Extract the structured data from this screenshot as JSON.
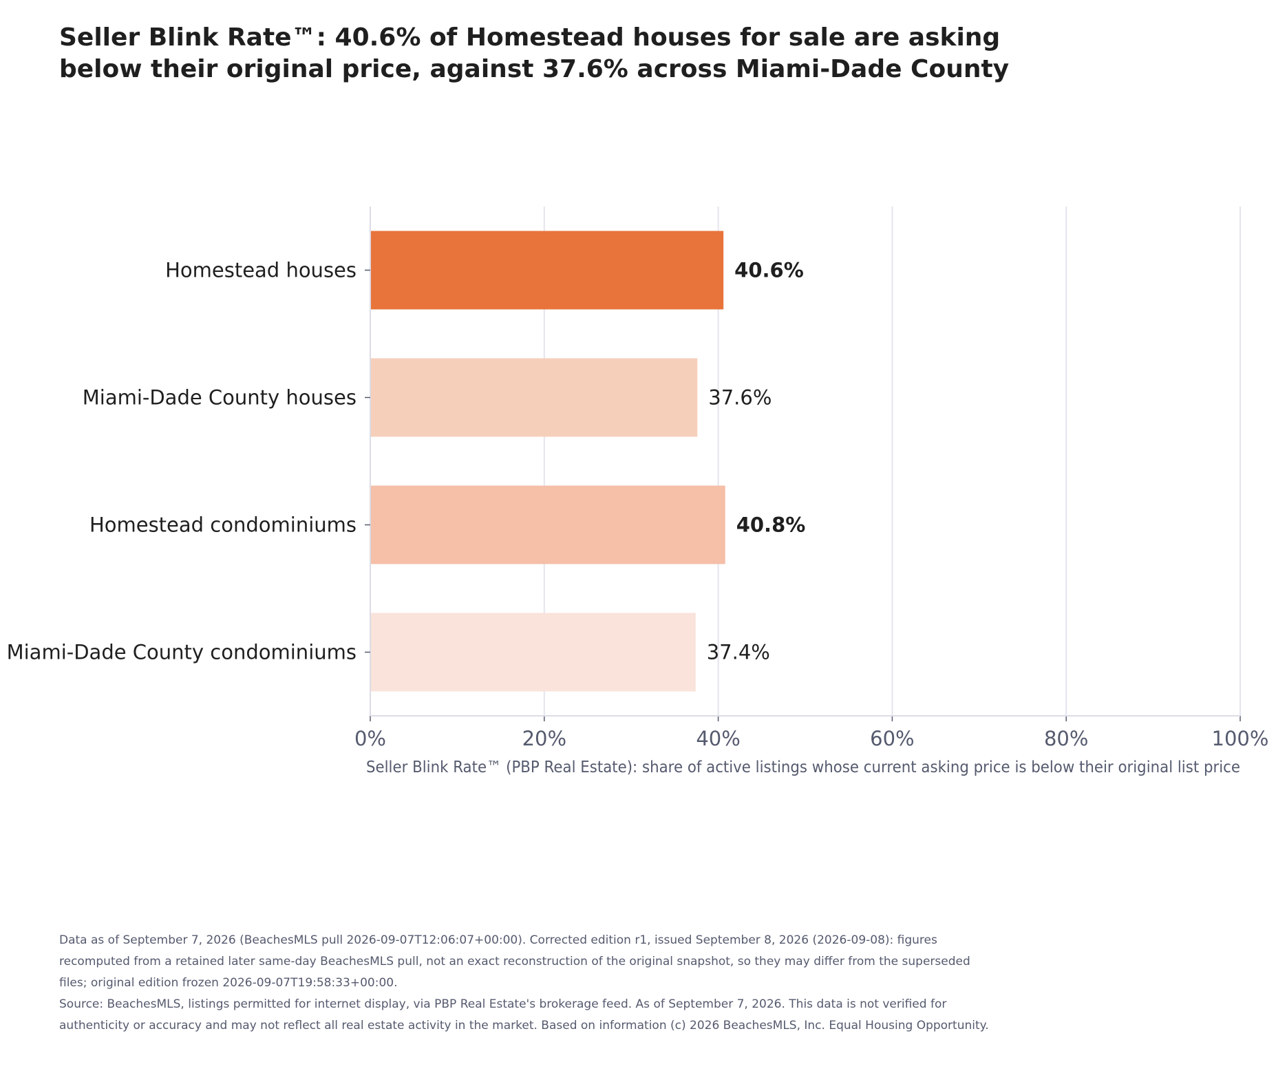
{
  "title": {
    "line1": "Seller Blink Rate™: 40.6% of Homestead houses for sale are asking",
    "line2": "below their original price, against 37.6% across Miami-Dade County"
  },
  "chart_data": {
    "type": "bar",
    "orientation": "horizontal",
    "categories": [
      "Homestead houses",
      "Miami-Dade County houses",
      "Homestead condominiums",
      "Miami-Dade County condominiums"
    ],
    "values": [
      40.6,
      37.6,
      40.8,
      37.4
    ],
    "data_labels": [
      "40.6%",
      "37.6%",
      "40.8%",
      "37.4%"
    ],
    "emphasized_labels": [
      true,
      false,
      true,
      false
    ],
    "bar_colors": [
      "#e8743b",
      "#f6cfbb",
      "#f5bfa8",
      "#f9e3da"
    ],
    "xlabel": "Seller Blink Rate™ (PBP Real Estate): share of active listings whose current asking price is below their original list price",
    "ylabel": "",
    "xlim": [
      0,
      100
    ],
    "xticks": [
      0,
      20,
      40,
      60,
      80,
      100
    ],
    "xtick_labels": [
      "0%",
      "20%",
      "40%",
      "60%",
      "80%",
      "100%"
    ],
    "grid": "vertical",
    "legend": "none"
  },
  "footer": {
    "note": "Data as of September 7, 2026 (BeachesMLS pull 2026-09-07T12:06:07+00:00). Corrected edition r1, issued September 8, 2026 (2026-09-08): figures recomputed from a retained later same-day BeachesMLS pull, not an exact reconstruction of the original snapshot, so they may differ from the superseded files; original edition frozen 2026-09-07T19:58:33+00:00.",
    "source": "Source: BeachesMLS, listings permitted for internet display, via PBP Real Estate's brokerage feed. As of September 7, 2026. This data is not verified for authenticity or accuracy and may not reflect all real estate activity in the market. Based on information (c) 2026 BeachesMLS, Inc. Equal Housing Opportunity."
  }
}
